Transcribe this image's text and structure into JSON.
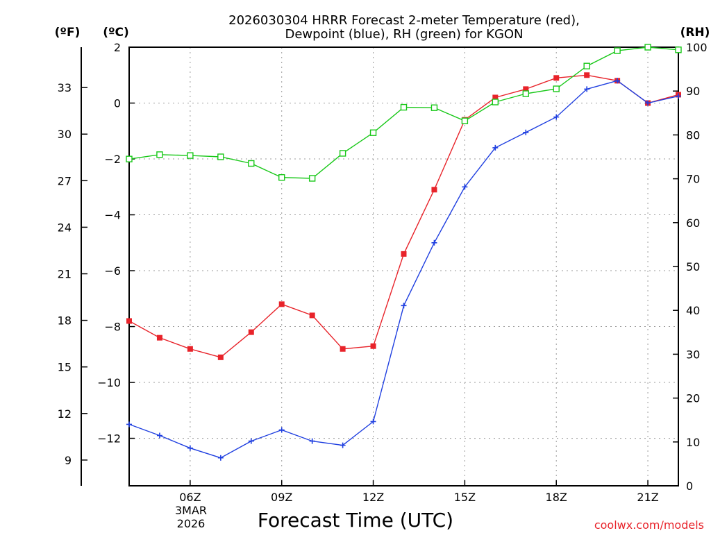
{
  "chart_data": {
    "type": "line",
    "title_line1": "2026030304 HRRR Forecast 2-meter Temperature (red),",
    "title_line2": "Dewpoint (blue), RH (green) for KGON",
    "xlabel": "Forecast Time (UTC)",
    "date_label": {
      "day": "3MAR",
      "year": "2026"
    },
    "credit": "coolwx.com/models",
    "colors": {
      "temperature": "#e8232a",
      "dewpoint": "#1f3fe0",
      "rh": "#18c818"
    },
    "x_hours": [
      4,
      5,
      6,
      7,
      8,
      9,
      10,
      11,
      12,
      13,
      14,
      15,
      16,
      17,
      18,
      19,
      20,
      21,
      22
    ],
    "x_range": [
      4,
      22
    ],
    "x_ticks": [
      {
        "hour": 6,
        "label": "06Z"
      },
      {
        "hour": 9,
        "label": "09Z"
      },
      {
        "hour": 12,
        "label": "12Z"
      },
      {
        "hour": 15,
        "label": "15Z"
      },
      {
        "hour": 18,
        "label": "18Z"
      },
      {
        "hour": 21,
        "label": "21Z"
      }
    ],
    "axis_celsius": {
      "unit_label": "(ºC)",
      "range": [
        -13.7,
        2.0
      ],
      "ticks": [
        2,
        0,
        -2,
        -4,
        -6,
        -8,
        -10,
        -12
      ]
    },
    "axis_fahrenheit": {
      "unit_label": "(ºF)",
      "ticks": [
        33,
        30,
        27,
        24,
        21,
        18,
        15,
        12,
        9
      ]
    },
    "axis_rh": {
      "unit_label": "(RH)",
      "range": [
        0,
        100
      ],
      "ticks": [
        100,
        90,
        80,
        70,
        60,
        50,
        40,
        30,
        20,
        10,
        0
      ]
    },
    "series": [
      {
        "name": "Temperature",
        "unit": "C",
        "values": [
          -7.8,
          -8.4,
          -8.8,
          -9.1,
          -8.2,
          -7.2,
          -7.6,
          -8.8,
          -8.7,
          -5.4,
          -3.1,
          -0.6,
          0.2,
          0.5,
          0.9,
          1.0,
          0.8,
          0.0,
          0.3
        ]
      },
      {
        "name": "Dewpoint",
        "unit": "C",
        "values": [
          -11.5,
          -11.9,
          -12.35,
          -12.7,
          -12.1,
          -11.7,
          -12.1,
          -12.25,
          -11.4,
          -7.25,
          -5.0,
          -3.0,
          -1.6,
          -1.05,
          -0.5,
          0.5,
          0.8,
          0.0,
          0.25
        ]
      },
      {
        "name": "RH",
        "unit": "%",
        "values": [
          74.5,
          75.5,
          75.3,
          75.0,
          73.5,
          70.3,
          70.1,
          75.8,
          80.5,
          86.3,
          86.2,
          83.2,
          87.5,
          89.4,
          90.5,
          95.7,
          99.2,
          100,
          99.4
        ]
      }
    ]
  }
}
